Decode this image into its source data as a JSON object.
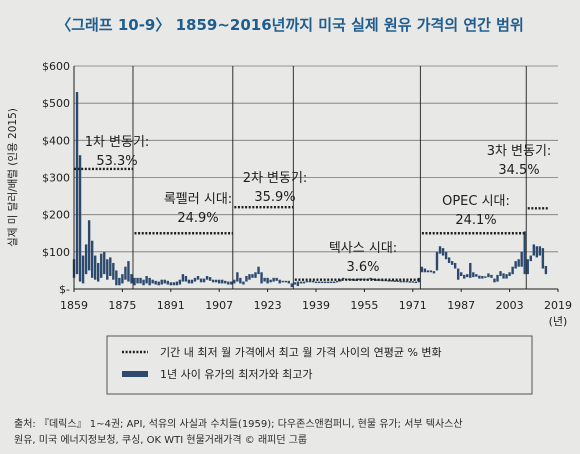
{
  "title": "〈그래프 10-9〉 1859~2016년까지 미국 실제 원유 가격의 연간 범위",
  "source_line1": "출처: 『데릭스』 1~4권; API, 석유의 사실과 수치들(1959); 다우존스앤컴퍼니, 현물 유가; 서부 텍사스산",
  "source_line2": "원유, 미국 에너지정보청, 쿠싱, OK WTI 현물거래가격 © 래피던 그룹",
  "chart_data": {
    "type": "range-bar",
    "ylabel": "실제 미 달러/배럴 (인용 2015)",
    "xunit": "(년)",
    "xlim": [
      1859,
      2019
    ],
    "ylim": [
      0,
      600
    ],
    "xticks": [
      1859,
      1875,
      1891,
      1907,
      1923,
      1939,
      1955,
      1971,
      1987,
      2003,
      2019
    ],
    "yticks": [
      0,
      100,
      200,
      300,
      400,
      500,
      600
    ],
    "ytick_labels": [
      "$-",
      "$100",
      "$200",
      "$300",
      "$400",
      "$500",
      "$600"
    ],
    "legend": [
      {
        "style": "dotted",
        "label": "기간 내 최저 월 가격에서 최고 월 가격 사이의 연평균 % 변화"
      },
      {
        "style": "bar",
        "label": "1년 사이 유가의 최저가와 최고가"
      }
    ],
    "periods": [
      {
        "name": "1차 변동기:",
        "pct": "53.3%",
        "start": 1859,
        "end": 1878,
        "level": 323
      },
      {
        "name": "록펠러 시대:",
        "pct": "24.9%",
        "start": 1879,
        "end": 1911,
        "level": 150
      },
      {
        "name": "2차 변동기:",
        "pct": "35.9%",
        "start": 1912,
        "end": 1931,
        "level": 220
      },
      {
        "name": "텍사스 시대:",
        "pct": "3.6%",
        "start": 1932,
        "end": 1973,
        "level": 25
      },
      {
        "name": "OPEC 시대:",
        "pct": "24.1%",
        "start": 1974,
        "end": 2008,
        "level": 150
      },
      {
        "name": "3차 변동기:",
        "pct": "34.5%",
        "start": 2009,
        "end": 2015,
        "level": 217
      }
    ],
    "annual_ranges": [
      [
        1859,
        30,
        80
      ],
      [
        1860,
        40,
        530
      ],
      [
        1861,
        20,
        360
      ],
      [
        1862,
        15,
        90
      ],
      [
        1863,
        40,
        120
      ],
      [
        1864,
        50,
        185
      ],
      [
        1865,
        30,
        130
      ],
      [
        1866,
        25,
        90
      ],
      [
        1867,
        20,
        70
      ],
      [
        1868,
        30,
        95
      ],
      [
        1869,
        40,
        100
      ],
      [
        1870,
        25,
        80
      ],
      [
        1871,
        35,
        85
      ],
      [
        1872,
        25,
        70
      ],
      [
        1873,
        10,
        50
      ],
      [
        1874,
        10,
        30
      ],
      [
        1875,
        15,
        40
      ],
      [
        1876,
        25,
        60
      ],
      [
        1877,
        20,
        75
      ],
      [
        1878,
        15,
        40
      ],
      [
        1879,
        10,
        30
      ],
      [
        1880,
        15,
        30
      ],
      [
        1881,
        15,
        30
      ],
      [
        1882,
        10,
        25
      ],
      [
        1883,
        15,
        35
      ],
      [
        1884,
        10,
        30
      ],
      [
        1885,
        15,
        25
      ],
      [
        1886,
        12,
        22
      ],
      [
        1887,
        10,
        20
      ],
      [
        1888,
        12,
        25
      ],
      [
        1889,
        15,
        25
      ],
      [
        1890,
        12,
        22
      ],
      [
        1891,
        10,
        18
      ],
      [
        1892,
        10,
        18
      ],
      [
        1893,
        10,
        20
      ],
      [
        1894,
        12,
        25
      ],
      [
        1895,
        20,
        40
      ],
      [
        1896,
        20,
        35
      ],
      [
        1897,
        15,
        25
      ],
      [
        1898,
        15,
        25
      ],
      [
        1899,
        20,
        30
      ],
      [
        1900,
        25,
        35
      ],
      [
        1901,
        18,
        28
      ],
      [
        1902,
        18,
        28
      ],
      [
        1903,
        25,
        35
      ],
      [
        1904,
        22,
        32
      ],
      [
        1905,
        18,
        25
      ],
      [
        1906,
        18,
        25
      ],
      [
        1907,
        15,
        25
      ],
      [
        1908,
        15,
        25
      ],
      [
        1909,
        15,
        22
      ],
      [
        1910,
        12,
        20
      ],
      [
        1911,
        12,
        20
      ],
      [
        1912,
        15,
        25
      ],
      [
        1913,
        20,
        45
      ],
      [
        1914,
        15,
        30
      ],
      [
        1915,
        12,
        20
      ],
      [
        1916,
        20,
        35
      ],
      [
        1917,
        25,
        40
      ],
      [
        1918,
        30,
        40
      ],
      [
        1919,
        30,
        45
      ],
      [
        1920,
        40,
        60
      ],
      [
        1921,
        15,
        45
      ],
      [
        1922,
        20,
        30
      ],
      [
        1923,
        15,
        30
      ],
      [
        1924,
        18,
        25
      ],
      [
        1925,
        20,
        30
      ],
      [
        1926,
        22,
        30
      ],
      [
        1927,
        15,
        25
      ],
      [
        1928,
        18,
        22
      ],
      [
        1929,
        18,
        22
      ],
      [
        1930,
        15,
        22
      ],
      [
        1931,
        5,
        15
      ],
      [
        1932,
        12,
        18
      ],
      [
        1933,
        8,
        20
      ],
      [
        1934,
        15,
        20
      ],
      [
        1935,
        15,
        20
      ],
      [
        1936,
        18,
        22
      ],
      [
        1937,
        18,
        22
      ],
      [
        1938,
        18,
        22
      ],
      [
        1939,
        16,
        20
      ],
      [
        1940,
        16,
        20
      ],
      [
        1941,
        18,
        20
      ],
      [
        1942,
        18,
        20
      ],
      [
        1943,
        18,
        20
      ],
      [
        1944,
        18,
        20
      ],
      [
        1945,
        18,
        20
      ],
      [
        1946,
        18,
        22
      ],
      [
        1947,
        20,
        26
      ],
      [
        1948,
        26,
        30
      ],
      [
        1949,
        26,
        28
      ],
      [
        1950,
        25,
        28
      ],
      [
        1951,
        25,
        27
      ],
      [
        1952,
        24,
        26
      ],
      [
        1953,
        25,
        28
      ],
      [
        1954,
        26,
        28
      ],
      [
        1955,
        26,
        28
      ],
      [
        1956,
        25,
        27
      ],
      [
        1957,
        27,
        30
      ],
      [
        1958,
        26,
        28
      ],
      [
        1959,
        24,
        26
      ],
      [
        1960,
        24,
        26
      ],
      [
        1961,
        23,
        25
      ],
      [
        1962,
        23,
        25
      ],
      [
        1963,
        22,
        24
      ],
      [
        1964,
        22,
        24
      ],
      [
        1965,
        21,
        23
      ],
      [
        1966,
        21,
        23
      ],
      [
        1967,
        20,
        22
      ],
      [
        1968,
        20,
        22
      ],
      [
        1969,
        20,
        22
      ],
      [
        1970,
        18,
        21
      ],
      [
        1971,
        18,
        21
      ],
      [
        1972,
        17,
        20
      ],
      [
        1973,
        18,
        30
      ],
      [
        1974,
        45,
        60
      ],
      [
        1975,
        45,
        55
      ],
      [
        1976,
        45,
        50
      ],
      [
        1977,
        45,
        50
      ],
      [
        1978,
        42,
        48
      ],
      [
        1979,
        50,
        100
      ],
      [
        1980,
        95,
        115
      ],
      [
        1981,
        90,
        110
      ],
      [
        1982,
        80,
        100
      ],
      [
        1983,
        70,
        85
      ],
      [
        1984,
        65,
        75
      ],
      [
        1985,
        55,
        70
      ],
      [
        1986,
        25,
        55
      ],
      [
        1987,
        35,
        45
      ],
      [
        1988,
        28,
        38
      ],
      [
        1989,
        32,
        40
      ],
      [
        1990,
        30,
        70
      ],
      [
        1991,
        32,
        45
      ],
      [
        1992,
        33,
        40
      ],
      [
        1993,
        28,
        36
      ],
      [
        1994,
        28,
        35
      ],
      [
        1995,
        30,
        34
      ],
      [
        1996,
        32,
        42
      ],
      [
        1997,
        30,
        38
      ],
      [
        1998,
        18,
        28
      ],
      [
        1999,
        20,
        38
      ],
      [
        2000,
        35,
        48
      ],
      [
        2001,
        28,
        42
      ],
      [
        2002,
        28,
        40
      ],
      [
        2003,
        35,
        45
      ],
      [
        2004,
        40,
        60
      ],
      [
        2005,
        55,
        75
      ],
      [
        2006,
        60,
        80
      ],
      [
        2007,
        60,
        100
      ],
      [
        2008,
        40,
        155
      ],
      [
        2009,
        40,
        80
      ],
      [
        2010,
        75,
        90
      ],
      [
        2011,
        90,
        120
      ],
      [
        2012,
        85,
        115
      ],
      [
        2013,
        90,
        115
      ],
      [
        2014,
        55,
        110
      ],
      [
        2015,
        40,
        62
      ]
    ]
  }
}
